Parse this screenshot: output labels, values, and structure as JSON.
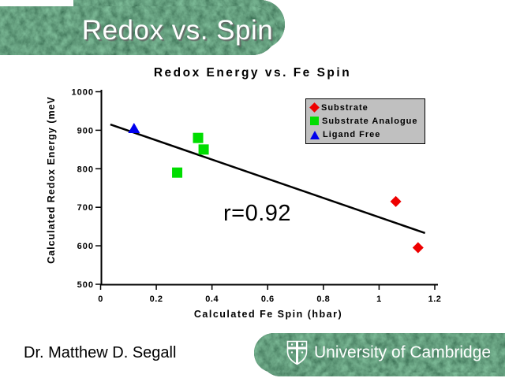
{
  "banner": {
    "title": "Redox vs. Spin"
  },
  "footer": {
    "name": "Dr. Matthew D. Segall",
    "org": "University of Cambridge",
    "crest_icon": "cambridge-crest"
  },
  "colors": {
    "banner_green_base": "#1d5434",
    "legend_bg": "#c0c0c0",
    "axis": "#000000",
    "substrate": "#ee0000",
    "substrate_analogue": "#00dd00",
    "ligand_free": "#0000ee"
  },
  "chart_data": {
    "type": "scatter",
    "title": "Redox Energy vs. Fe Spin",
    "xlabel": "Calculated Fe Spin (hbar)",
    "ylabel": "Calculated Redox Energy (meV",
    "xlim": [
      0,
      1.2
    ],
    "ylim": [
      500,
      1000
    ],
    "x_ticks": [
      "0",
      "0.2",
      "0.4",
      "0.6",
      "0.8",
      "1",
      "1.2"
    ],
    "y_ticks": [
      "500",
      "600",
      "700",
      "800",
      "900",
      "1000"
    ],
    "grid": false,
    "legend_position": "top-right",
    "annotation": "r=0.92",
    "series": [
      {
        "name": "Substrate",
        "marker": "diamond",
        "color": "#ee0000",
        "points": [
          [
            1.06,
            715
          ],
          [
            1.14,
            595
          ]
        ]
      },
      {
        "name": "Substrate Analogue",
        "marker": "square",
        "color": "#00dd00",
        "points": [
          [
            0.35,
            880
          ],
          [
            0.37,
            850
          ],
          [
            0.275,
            790
          ]
        ]
      },
      {
        "name": "Ligand Free",
        "marker": "triangle",
        "color": "#0000ee",
        "points": [
          [
            0.12,
            905
          ]
        ]
      }
    ],
    "trendline": {
      "x1": 0.035,
      "y1": 915,
      "x2": 1.165,
      "y2": 633
    }
  }
}
